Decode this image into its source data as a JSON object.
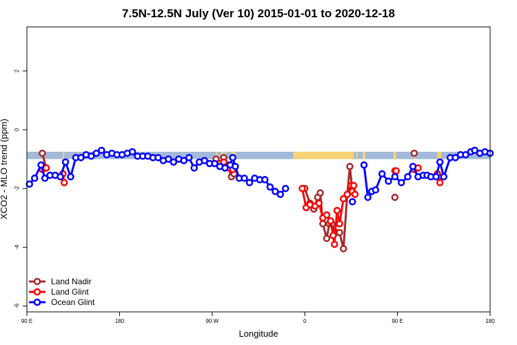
{
  "chart_data": {
    "type": "line",
    "title": "7.5N-12.5N July (Ver 10)   2015-01-01 to 2020-12-18",
    "xlabel": "Longitude",
    "ylabel": "XCO2 - MLO trend (ppm)",
    "xlim": [
      -90,
      270
    ],
    "ylim": [
      -6.2,
      3.5
    ],
    "x_ticks": [
      {
        "value": -90,
        "label": "90 E"
      },
      {
        "value": -18,
        "label": "180"
      },
      {
        "value": 54,
        "label": "90 W"
      },
      {
        "value": 126,
        "label": "0"
      },
      {
        "value": 198,
        "label": "90 E"
      },
      {
        "value": 270,
        "label": "180"
      }
    ],
    "y_ticks": [
      {
        "value": 2,
        "label": "2"
      },
      {
        "value": 0,
        "label": "0"
      },
      {
        "value": -2,
        "label": "-2"
      },
      {
        "value": -4,
        "label": "-4"
      },
      {
        "value": -6,
        "label": "-6"
      }
    ],
    "grid": false,
    "legend_position": "bottom-left",
    "band": {
      "y_range": [
        -1.0,
        -0.75
      ],
      "ocean_color": "#a3bad8",
      "land_color": "#f5d376",
      "land_segments": [
        [
          -78,
          -77
        ],
        [
          -62,
          -61
        ],
        [
          57,
          58
        ],
        [
          61,
          63
        ],
        [
          64,
          65
        ],
        [
          69,
          72
        ],
        [
          117,
          164
        ],
        [
          166,
          167
        ],
        [
          171,
          173
        ],
        [
          195,
          197
        ],
        [
          211,
          212
        ],
        [
          229,
          232
        ]
      ]
    },
    "series": [
      {
        "name": "Land Nadir",
        "color": "#a52a2a",
        "segments": [
          [
            [
              -78,
              -0.8
            ],
            [
              -75,
              -1.3
            ]
          ],
          [
            [
              -62,
              -1.5
            ]
          ],
          [
            [
              57,
              -1.0
            ],
            [
              61,
              -1.15
            ],
            [
              63,
              -0.95
            ],
            [
              66,
              -1.2
            ],
            [
              69,
              -1.6
            ],
            [
              71,
              -1.5
            ]
          ],
          [
            [
              126,
              -2.0
            ],
            [
              130,
              -2.5
            ],
            [
              133,
              -2.7
            ],
            [
              136,
              -2.3
            ],
            [
              138,
              -2.15
            ],
            [
              140,
              -3.2
            ],
            [
              143,
              -3.7
            ],
            [
              145,
              -3.2
            ],
            [
              147,
              -3.2
            ],
            [
              150,
              -3.5
            ],
            [
              153,
              -3.5
            ],
            [
              156,
              -4.05
            ],
            [
              159,
              -2.2
            ],
            [
              161,
              -1.25
            ],
            [
              163,
              -2.1
            ]
          ],
          [
            [
              196,
              -2.3
            ]
          ],
          [
            [
              211,
              -0.8
            ]
          ],
          [
            [
              230,
              -1.6
            ]
          ]
        ]
      },
      {
        "name": "Land Glint",
        "color": "#ff0000",
        "segments": [
          [
            [
              -78,
              -1.35
            ],
            [
              -75,
              -1.3
            ]
          ],
          [
            [
              -62,
              -1.5
            ],
            [
              -61,
              -1.8
            ]
          ],
          [
            [
              60,
              -1.15
            ],
            [
              63,
              -1.1
            ],
            [
              67,
              -1.3
            ],
            [
              70,
              -1.35
            ]
          ],
          [
            [
              124,
              -2.0
            ],
            [
              127,
              -2.65
            ],
            [
              130,
              -2.55
            ],
            [
              134,
              -2.6
            ],
            [
              137,
              -2.5
            ],
            [
              140,
              -3.0
            ],
            [
              143,
              -2.9
            ],
            [
              146,
              -3.1
            ],
            [
              148,
              -3.6
            ],
            [
              149,
              -3.9
            ],
            [
              151,
              -2.75
            ],
            [
              153,
              -3.2
            ],
            [
              156,
              -2.35
            ],
            [
              159,
              -2.2
            ],
            [
              162,
              -1.9
            ],
            [
              164,
              -1.9
            ],
            [
              165,
              -2.2
            ]
          ],
          [
            [
              196,
              -1.4
            ],
            [
              197,
              -1.4
            ]
          ],
          [
            [
              211,
              -1.35
            ],
            [
              214,
              -1.3
            ]
          ],
          [
            [
              229,
              -1.5
            ],
            [
              231,
              -1.8
            ]
          ]
        ]
      },
      {
        "name": "Ocean Glint",
        "color": "#0000ff",
        "segments": [
          [
            [
              -88,
              -1.85
            ],
            [
              -84,
              -1.65
            ],
            [
              -79,
              -1.2
            ],
            [
              -76,
              -1.65
            ],
            [
              -72,
              -1.55
            ],
            [
              -68,
              -1.55
            ],
            [
              -64,
              -1.6
            ],
            [
              -60,
              -1.1
            ],
            [
              -56,
              -1.6
            ],
            [
              -52,
              -0.95
            ],
            [
              -48,
              -0.95
            ],
            [
              -44,
              -0.85
            ],
            [
              -40,
              -0.9
            ],
            [
              -36,
              -0.8
            ],
            [
              -32,
              -0.7
            ],
            [
              -28,
              -0.85
            ],
            [
              -24,
              -0.8
            ],
            [
              -20,
              -0.85
            ],
            [
              -16,
              -0.85
            ],
            [
              -12,
              -0.8
            ],
            [
              -8,
              -0.75
            ],
            [
              -4,
              -0.9
            ],
            [
              0,
              -0.9
            ],
            [
              4,
              -0.9
            ],
            [
              8,
              -0.95
            ],
            [
              12,
              -0.95
            ],
            [
              16,
              -1.05
            ],
            [
              20,
              -1.0
            ],
            [
              24,
              -1.1
            ],
            [
              28,
              -1.0
            ],
            [
              32,
              -1.05
            ],
            [
              36,
              -0.95
            ],
            [
              40,
              -1.3
            ],
            [
              44,
              -1.1
            ],
            [
              48,
              -1.05
            ],
            [
              52,
              -1.15
            ],
            [
              56,
              -1.15
            ],
            [
              60,
              -1.25
            ],
            [
              64,
              -1.3
            ],
            [
              68,
              -1.2
            ],
            [
              70,
              -0.95
            ],
            [
              72,
              -1.25
            ],
            [
              75,
              -1.65
            ],
            [
              79,
              -1.65
            ],
            [
              83,
              -1.8
            ],
            [
              87,
              -1.65
            ],
            [
              91,
              -1.7
            ],
            [
              95,
              -1.7
            ],
            [
              99,
              -1.95
            ],
            [
              103,
              -2.1
            ],
            [
              107,
              -2.2
            ],
            [
              111,
              -2.0
            ]
          ],
          [
            [
              163,
              -2.45
            ]
          ],
          [
            [
              172,
              -1.2
            ],
            [
              175,
              -2.3
            ],
            [
              178,
              -2.1
            ],
            [
              181,
              -2.05
            ],
            [
              186,
              -1.5
            ],
            [
              191,
              -1.75
            ],
            [
              196,
              -1.6
            ],
            [
              201,
              -1.8
            ],
            [
              206,
              -1.6
            ],
            [
              210,
              -1.25
            ],
            [
              214,
              -1.6
            ],
            [
              218,
              -1.55
            ],
            [
              221,
              -1.55
            ],
            [
              224,
              -1.6
            ],
            [
              228,
              -1.6
            ],
            [
              231,
              -1.1
            ],
            [
              234,
              -1.6
            ],
            [
              239,
              -0.95
            ],
            [
              243,
              -0.95
            ],
            [
              247,
              -0.85
            ],
            [
              251,
              -0.85
            ],
            [
              255,
              -0.75
            ],
            [
              258,
              -0.7
            ],
            [
              262,
              -0.8
            ],
            [
              266,
              -0.75
            ],
            [
              270,
              -0.8
            ]
          ]
        ]
      }
    ]
  }
}
